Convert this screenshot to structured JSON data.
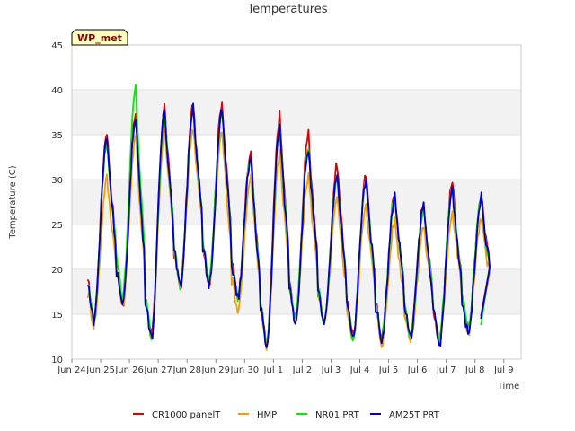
{
  "chart_data": {
    "type": "line",
    "title": "Temperatures",
    "xlabel": "Time",
    "ylabel": "Temperature (C)",
    "ylim": [
      10,
      45
    ],
    "yticks": [
      10,
      15,
      20,
      25,
      30,
      35,
      40,
      45
    ],
    "xlim": [
      0,
      15.6
    ],
    "xticks": [
      {
        "v": 0,
        "label": "Jun 24"
      },
      {
        "v": 1,
        "label": "Jun 25"
      },
      {
        "v": 2,
        "label": "Jun 26"
      },
      {
        "v": 3,
        "label": "Jun 27"
      },
      {
        "v": 4,
        "label": "Jun 28"
      },
      {
        "v": 5,
        "label": "Jun 29"
      },
      {
        "v": 6,
        "label": "Jun 30"
      },
      {
        "v": 7,
        "label": "Jul 1"
      },
      {
        "v": 8,
        "label": "Jul 2"
      },
      {
        "v": 9,
        "label": "Jul 3"
      },
      {
        "v": 10,
        "label": "Jul 4"
      },
      {
        "v": 11,
        "label": "Jul 5"
      },
      {
        "v": 12,
        "label": "Jul 6"
      },
      {
        "v": 13,
        "label": "Jul 7"
      },
      {
        "v": 14,
        "label": "Jul 8"
      },
      {
        "v": 15,
        "label": "Jul 9"
      }
    ],
    "badge": "WP_met",
    "legend_position": "bottom",
    "grid": true,
    "series": [
      {
        "name": "CR1000 panelT",
        "color": "#dd0000",
        "daily": [
          {
            "min": 14.5,
            "max": 35.5
          },
          {
            "min": 16.0,
            "max": 37.5
          },
          {
            "min": 12.5,
            "max": 38.3
          },
          {
            "min": 18.0,
            "max": 38.5
          },
          {
            "min": 18.5,
            "max": 38.8
          },
          {
            "min": 17.0,
            "max": 33.2
          },
          {
            "min": 11.5,
            "max": 37.2
          },
          {
            "min": 14.5,
            "max": 35.0
          },
          {
            "min": 14.0,
            "max": 31.8
          },
          {
            "min": 12.5,
            "max": 30.5
          },
          {
            "min": 12.5,
            "max": 28.5
          },
          {
            "min": 12.5,
            "max": 27.5
          },
          {
            "min": 11.8,
            "max": 29.8
          },
          {
            "min": 13.0,
            "max": 28.3
          },
          {
            "min": 14.8,
            "max": 14.8
          }
        ]
      },
      {
        "name": "HMP",
        "color": "#f0a000",
        "daily": [
          {
            "min": 13.8,
            "max": 30.2
          },
          {
            "min": 15.8,
            "max": 34.8
          },
          {
            "min": 12.5,
            "max": 35.5
          },
          {
            "min": 18.0,
            "max": 36.0
          },
          {
            "min": 18.5,
            "max": 35.5
          },
          {
            "min": 15.5,
            "max": 30.2
          },
          {
            "min": 11.5,
            "max": 33.0
          },
          {
            "min": 14.2,
            "max": 30.5
          },
          {
            "min": 14.0,
            "max": 27.8
          },
          {
            "min": 12.0,
            "max": 27.5
          },
          {
            "min": 11.8,
            "max": 25.5
          },
          {
            "min": 12.0,
            "max": 24.8
          },
          {
            "min": 12.2,
            "max": 26.5
          },
          {
            "min": 13.0,
            "max": 25.5
          },
          {
            "min": 14.5,
            "max": 14.5
          }
        ]
      },
      {
        "name": "NR01 PRT",
        "color": "#00ee00",
        "daily": [
          {
            "min": 14.5,
            "max": 34.2
          },
          {
            "min": 17.0,
            "max": 40.2
          },
          {
            "min": 12.5,
            "max": 37.5
          },
          {
            "min": 18.3,
            "max": 38.0
          },
          {
            "min": 19.0,
            "max": 37.8
          },
          {
            "min": 17.0,
            "max": 32.5
          },
          {
            "min": 11.8,
            "max": 36.0
          },
          {
            "min": 14.5,
            "max": 33.5
          },
          {
            "min": 14.0,
            "max": 30.5
          },
          {
            "min": 12.5,
            "max": 30.0
          },
          {
            "min": 12.5,
            "max": 28.0
          },
          {
            "min": 12.5,
            "max": 27.0
          },
          {
            "min": 12.5,
            "max": 29.0
          },
          {
            "min": 13.5,
            "max": 28.0
          },
          {
            "min": 13.8,
            "max": 13.8
          }
        ]
      },
      {
        "name": "AM25T PRT",
        "color": "#0000cc",
        "daily": [
          {
            "min": 14.3,
            "max": 34.8
          },
          {
            "min": 15.8,
            "max": 37.2
          },
          {
            "min": 12.3,
            "max": 38.0
          },
          {
            "min": 18.0,
            "max": 38.3
          },
          {
            "min": 18.3,
            "max": 37.8
          },
          {
            "min": 16.8,
            "max": 32.5
          },
          {
            "min": 11.3,
            "max": 36.0
          },
          {
            "min": 14.2,
            "max": 33.5
          },
          {
            "min": 13.8,
            "max": 30.8
          },
          {
            "min": 12.3,
            "max": 30.2
          },
          {
            "min": 12.3,
            "max": 28.3
          },
          {
            "min": 12.3,
            "max": 27.2
          },
          {
            "min": 11.5,
            "max": 29.0
          },
          {
            "min": 12.8,
            "max": 28.0
          },
          {
            "min": 14.5,
            "max": 14.5
          }
        ]
      }
    ]
  }
}
